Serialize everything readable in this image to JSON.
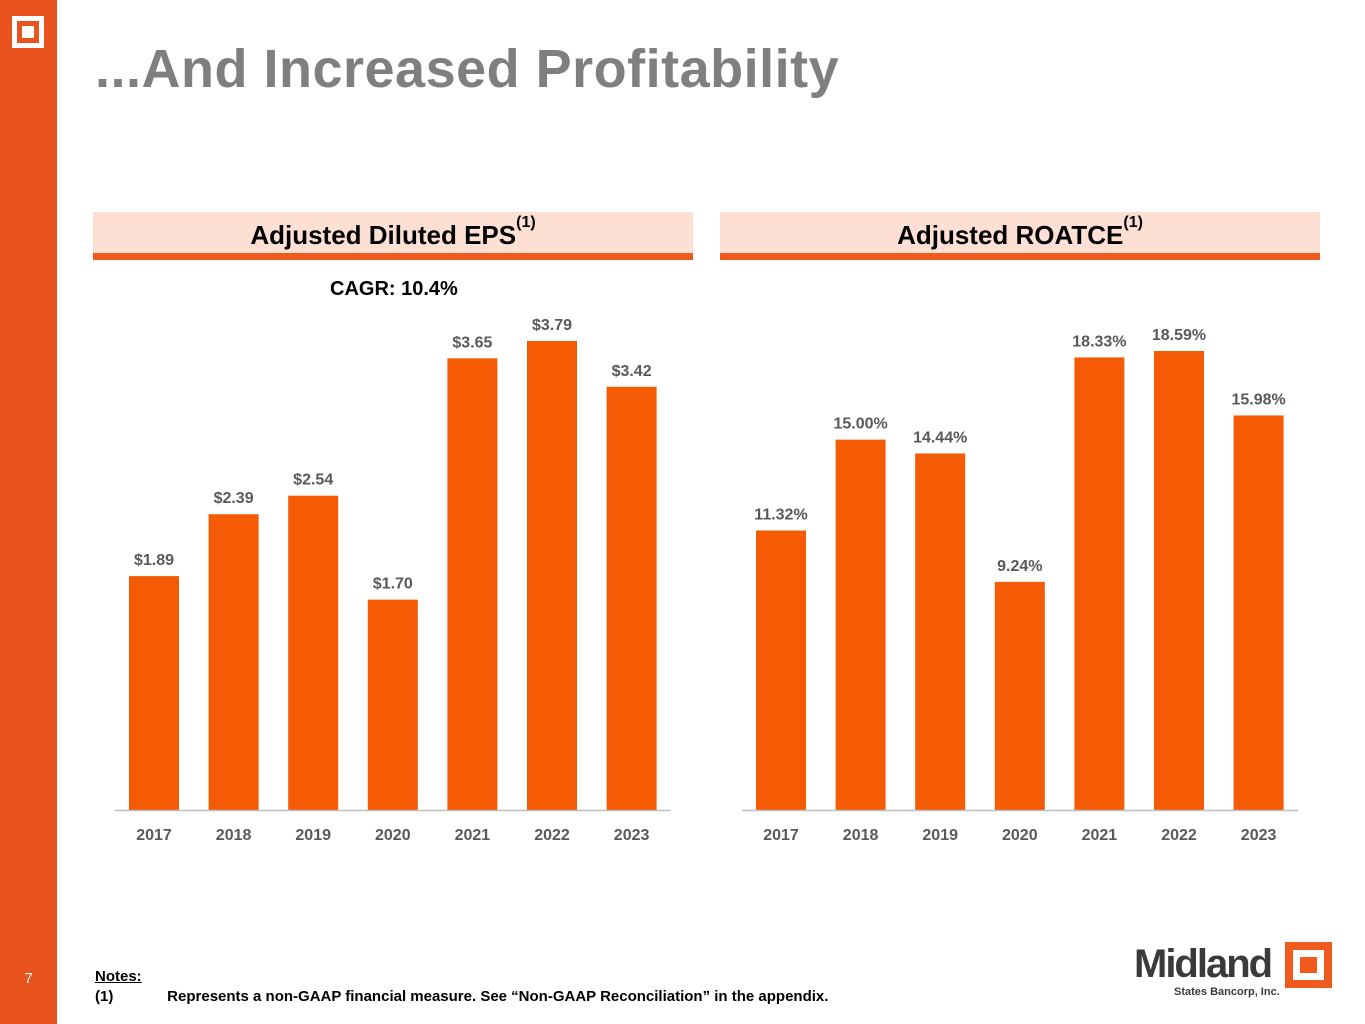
{
  "slide": {
    "title": "...And Increased Profitability",
    "page_number": "7"
  },
  "left_panel": {
    "header": "Adjusted Diluted EPS",
    "header_sup": "(1)",
    "cagr": "CAGR: 10.4%"
  },
  "right_panel": {
    "header": "Adjusted ROATCE",
    "header_sup": "(1)"
  },
  "notes": {
    "title": "Notes:",
    "items": [
      {
        "num": "(1)",
        "text": "Represents a non-GAAP financial measure. See “Non-GAAP Reconciliation” in the appendix."
      }
    ]
  },
  "brand": {
    "name": "Midland",
    "sub": "States Bancorp, Inc.",
    "color": "#f05a1c"
  },
  "colors": {
    "accent": "#f05a1c",
    "sidebar": "#e9531d",
    "header_bg": "#fde0d3",
    "title": "#7f7f7f",
    "bar": "#f55a05",
    "label": "#595959"
  },
  "chart_data": [
    {
      "type": "bar",
      "title": "Adjusted Diluted EPS",
      "categories": [
        "2017",
        "2018",
        "2019",
        "2020",
        "2021",
        "2022",
        "2023"
      ],
      "values": [
        1.89,
        2.39,
        2.54,
        1.7,
        3.65,
        3.79,
        3.42
      ],
      "labels": [
        "$1.89",
        "$2.39",
        "$2.54",
        "$1.70",
        "$3.65",
        "$3.79",
        "$3.42"
      ],
      "ylim": [
        0,
        3.79
      ],
      "grid": false
    },
    {
      "type": "bar",
      "title": "Adjusted ROATCE",
      "categories": [
        "2017",
        "2018",
        "2019",
        "2020",
        "2021",
        "2022",
        "2023"
      ],
      "values": [
        11.32,
        15.0,
        14.44,
        9.24,
        18.33,
        18.59,
        15.98
      ],
      "labels": [
        "11.32%",
        "15.00%",
        "14.44%",
        "9.24%",
        "18.33%",
        "18.59%",
        "15.98%"
      ],
      "ylim": [
        0,
        18.59
      ],
      "grid": false
    }
  ]
}
